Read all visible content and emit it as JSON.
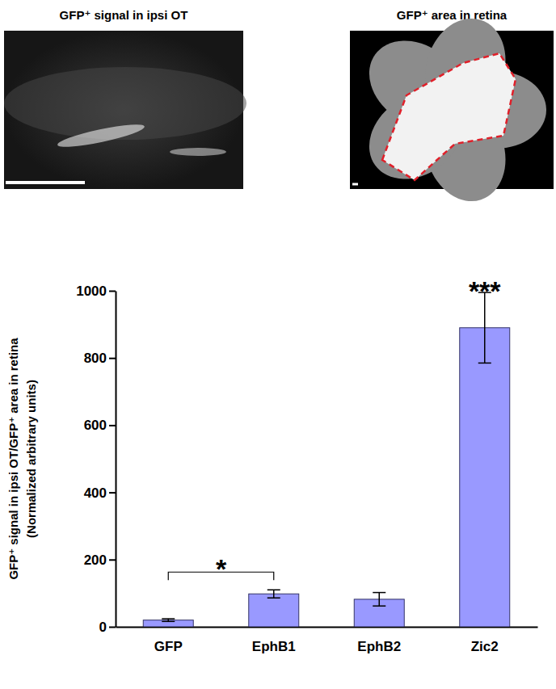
{
  "panels": [
    {
      "title": "GFP⁺ signal in ipsi OT"
    },
    {
      "title": "GFP⁺ area in retina"
    }
  ],
  "chart_data": {
    "type": "bar",
    "y_label": [
      "GFP⁺ signal in ipsi OT/GFP⁺ area in retina",
      "(Normalized arbitrary units)"
    ],
    "categories": [
      "GFP",
      "EphB1",
      "EphB2",
      "Zic2"
    ],
    "values": [
      20,
      98,
      82,
      890
    ],
    "errors": [
      4,
      12,
      20,
      105
    ],
    "color": "#9999ff",
    "ylim": [
      0,
      1000
    ],
    "yticks": [
      0,
      200,
      400,
      600,
      800,
      1000
    ],
    "annotations": [
      {
        "text": "*",
        "categories": [
          "GFP",
          "EphB1"
        ]
      },
      {
        "text": "***",
        "categories": [
          "Zic2"
        ]
      }
    ]
  }
}
